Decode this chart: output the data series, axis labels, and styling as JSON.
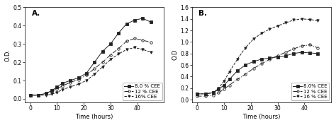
{
  "panel_A": {
    "label": "A.",
    "xlabel": "Time (hours)",
    "ylabel": "O.D.",
    "xlim": [
      -2,
      50
    ],
    "ylim": [
      -0.02,
      0.5
    ],
    "yticks": [
      0.0,
      0.1,
      0.2,
      0.3,
      0.4,
      0.5
    ],
    "xticks": [
      0,
      10,
      20,
      30,
      40
    ],
    "series": [
      {
        "label": "8.0 % CEE",
        "marker": "s",
        "fillstyle": "full",
        "color": "#222222",
        "linestyle": "-",
        "x": [
          0,
          3,
          6,
          8,
          10,
          12,
          15,
          18,
          21,
          24,
          27,
          30,
          33,
          36,
          39,
          42,
          45
        ],
        "y": [
          0.02,
          0.02,
          0.03,
          0.045,
          0.065,
          0.085,
          0.1,
          0.115,
          0.14,
          0.2,
          0.26,
          0.3,
          0.36,
          0.41,
          0.43,
          0.44,
          0.42
        ]
      },
      {
        "label": "12 % CEE",
        "marker": "o",
        "fillstyle": "none",
        "color": "#222222",
        "linestyle": "-.",
        "x": [
          0,
          3,
          6,
          8,
          10,
          12,
          15,
          18,
          21,
          24,
          27,
          30,
          33,
          36,
          39,
          42,
          45
        ],
        "y": [
          0.02,
          0.02,
          0.03,
          0.04,
          0.055,
          0.07,
          0.09,
          0.105,
          0.13,
          0.165,
          0.2,
          0.24,
          0.275,
          0.315,
          0.33,
          0.32,
          0.31
        ]
      },
      {
        "label": "16% CEE",
        "marker": "v",
        "fillstyle": "full",
        "color": "#222222",
        "linestyle": "--",
        "x": [
          0,
          3,
          6,
          8,
          10,
          12,
          15,
          18,
          21,
          24,
          27,
          30,
          33,
          36,
          39,
          42,
          45
        ],
        "y": [
          0.02,
          0.02,
          0.02,
          0.025,
          0.035,
          0.05,
          0.065,
          0.08,
          0.1,
          0.135,
          0.175,
          0.215,
          0.245,
          0.27,
          0.28,
          0.27,
          0.255
        ]
      }
    ]
  },
  "panel_B": {
    "label": "B.",
    "xlabel": "Time (hours)",
    "ylabel": "O.D",
    "xlim": [
      -2,
      50
    ],
    "ylim": [
      -0.05,
      1.6
    ],
    "yticks": [
      0.0,
      0.2,
      0.4,
      0.6,
      0.8,
      1.0,
      1.2,
      1.4,
      1.6
    ],
    "xticks": [
      0,
      10,
      20,
      30,
      40
    ],
    "series": [
      {
        "label": "8.0% CEE",
        "marker": "s",
        "fillstyle": "full",
        "color": "#222222",
        "linestyle": "-",
        "x": [
          0,
          3,
          6,
          8,
          10,
          12,
          15,
          18,
          21,
          24,
          27,
          30,
          33,
          36,
          39,
          42,
          45
        ],
        "y": [
          0.1,
          0.1,
          0.12,
          0.18,
          0.25,
          0.35,
          0.5,
          0.6,
          0.66,
          0.7,
          0.72,
          0.74,
          0.76,
          0.8,
          0.82,
          0.81,
          0.8
        ]
      },
      {
        "label": "12 % CEE",
        "marker": "o",
        "fillstyle": "none",
        "color": "#222222",
        "linestyle": "-.",
        "x": [
          0,
          3,
          6,
          8,
          10,
          12,
          15,
          18,
          21,
          24,
          27,
          30,
          33,
          36,
          39,
          42,
          45
        ],
        "y": [
          0.06,
          0.06,
          0.08,
          0.12,
          0.18,
          0.25,
          0.35,
          0.44,
          0.54,
          0.62,
          0.7,
          0.76,
          0.82,
          0.88,
          0.93,
          0.95,
          0.9
        ]
      },
      {
        "label": "16 % CEE",
        "marker": "v",
        "fillstyle": "full",
        "color": "#222222",
        "linestyle": "--",
        "x": [
          0,
          3,
          6,
          8,
          10,
          12,
          15,
          18,
          21,
          24,
          27,
          30,
          33,
          36,
          39,
          42,
          45
        ],
        "y": [
          0.1,
          0.1,
          0.12,
          0.2,
          0.32,
          0.48,
          0.7,
          0.9,
          1.05,
          1.15,
          1.22,
          1.28,
          1.33,
          1.38,
          1.4,
          1.39,
          1.37
        ]
      }
    ]
  },
  "bg_color": "#ffffff",
  "legend_fontsize": 5.0,
  "axis_fontsize": 6.0,
  "tick_fontsize": 5.5,
  "label_fontsize": 7.5
}
